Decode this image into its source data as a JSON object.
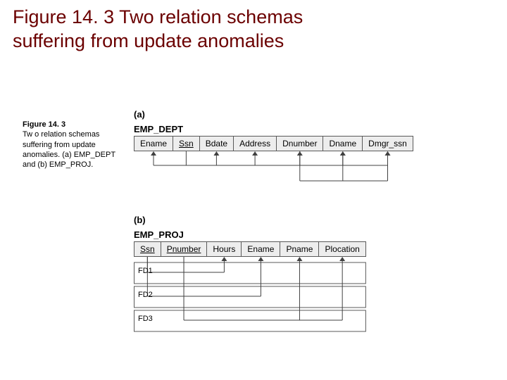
{
  "title_line1": "Figure 14. 3 Two relation schemas",
  "title_line2": "suffering from update anomalies",
  "title_color": "#6b0000",
  "caption": {
    "heading": "Figure 14. 3",
    "body": "Tw o relation schemas suffering from update anomalies. (a) EMP_DEPT and (b) EMP_PROJ."
  },
  "part_a": {
    "label": "(a)",
    "relation": "EMP_DEPT",
    "columns": [
      "Ename",
      "Ssn",
      "Bdate",
      "Address",
      "Dnumber",
      "Dname",
      "Dmgr_ssn"
    ],
    "underlined": [
      false,
      true,
      false,
      false,
      false,
      false,
      false
    ],
    "fd1": {
      "source": 1,
      "targets": [
        0,
        2,
        3,
        4,
        5,
        6
      ]
    },
    "fd2": {
      "source": 4,
      "targets": [
        5,
        6
      ]
    }
  },
  "part_b": {
    "label": "(b)",
    "relation": "EMP_PROJ",
    "columns": [
      "Ssn",
      "Pnumber",
      "Hours",
      "Ename",
      "Pname",
      "Plocation"
    ],
    "underlined": [
      true,
      true,
      false,
      false,
      false,
      false
    ],
    "fds": [
      {
        "label": "FD1",
        "sources": [
          0,
          1
        ],
        "targets": [
          2
        ]
      },
      {
        "label": "FD2",
        "sources": [
          0
        ],
        "targets": [
          3
        ]
      },
      {
        "label": "FD3",
        "sources": [
          1
        ],
        "targets": [
          4,
          5
        ]
      }
    ]
  },
  "style": {
    "cell_bg": "#ededed",
    "cell_border": "#595959",
    "arrow_color": "#404040",
    "body_font_size": 12,
    "label_font_size": 11
  }
}
